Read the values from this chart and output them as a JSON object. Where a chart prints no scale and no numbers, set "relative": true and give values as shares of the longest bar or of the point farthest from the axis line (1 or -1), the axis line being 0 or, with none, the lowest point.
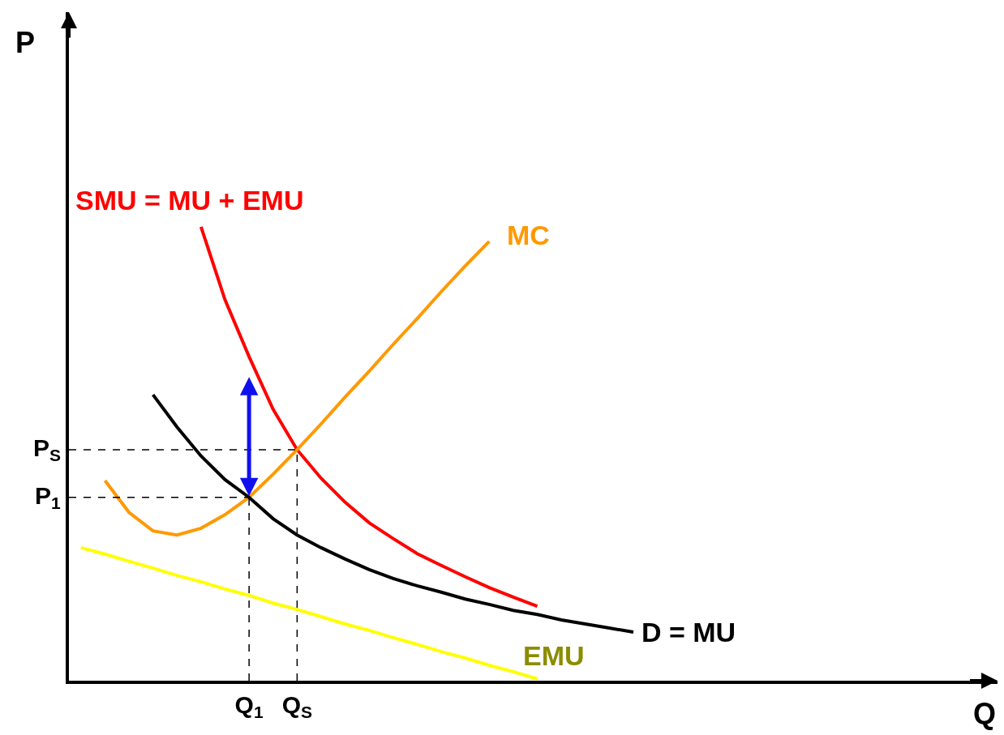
{
  "chart_data": {
    "type": "line",
    "relative": true,
    "legend": false,
    "marker": "none",
    "line_style": "solid",
    "categories": [
      null,
      null,
      null,
      null,
      null,
      null,
      null,
      "Q$_{1}$",
      null,
      "Q$_{S}$",
      null,
      null,
      null,
      null,
      null,
      null,
      null,
      null,
      null,
      null,
      null,
      null,
      null,
      null
    ],
    "annotations": [
      "P$_{1}$",
      "P$_{S}$",
      "P",
      "Q"
    ],
    "series": [
      {
        "name": "SMU = MU + EMU",
        "color": "#ff0000",
        "values": [
          null,
          null,
          null,
          null,
          null,
          1.0,
          0.839,
          0.714,
          0.598,
          0.509,
          0.446,
          0.393,
          0.348,
          0.313,
          0.28,
          0.254,
          0.229,
          0.205,
          0.184,
          0.164,
          null,
          null,
          null,
          null
        ]
      },
      {
        "name": "MC",
        "color": "#ff9900",
        "values": [
          null,
          0.441,
          0.371,
          0.33,
          0.321,
          0.336,
          0.366,
          0.404,
          0.455,
          0.509,
          0.566,
          0.625,
          0.682,
          0.741,
          0.798,
          0.857,
          0.914,
          0.968,
          null,
          null,
          null,
          null,
          null,
          null
        ]
      },
      {
        "name": "D = MU",
        "color": "#000000",
        "values": [
          null,
          null,
          null,
          0.63,
          0.559,
          0.495,
          0.443,
          0.404,
          0.357,
          0.321,
          0.293,
          0.268,
          0.245,
          0.225,
          0.209,
          0.195,
          0.18,
          0.168,
          0.155,
          0.146,
          0.134,
          0.125,
          0.116,
          0.107
        ]
      },
      {
        "name": "EMU",
        "color": "#ffff00",
        "values": [
          0.293,
          0.279,
          0.263,
          0.248,
          0.232,
          0.218,
          0.202,
          0.188,
          0.171,
          0.157,
          0.141,
          0.125,
          0.111,
          0.095,
          0.08,
          0.064,
          0.05,
          0.034,
          0.02,
          0.004,
          null,
          null,
          null,
          null
        ]
      }
    ]
  }
}
